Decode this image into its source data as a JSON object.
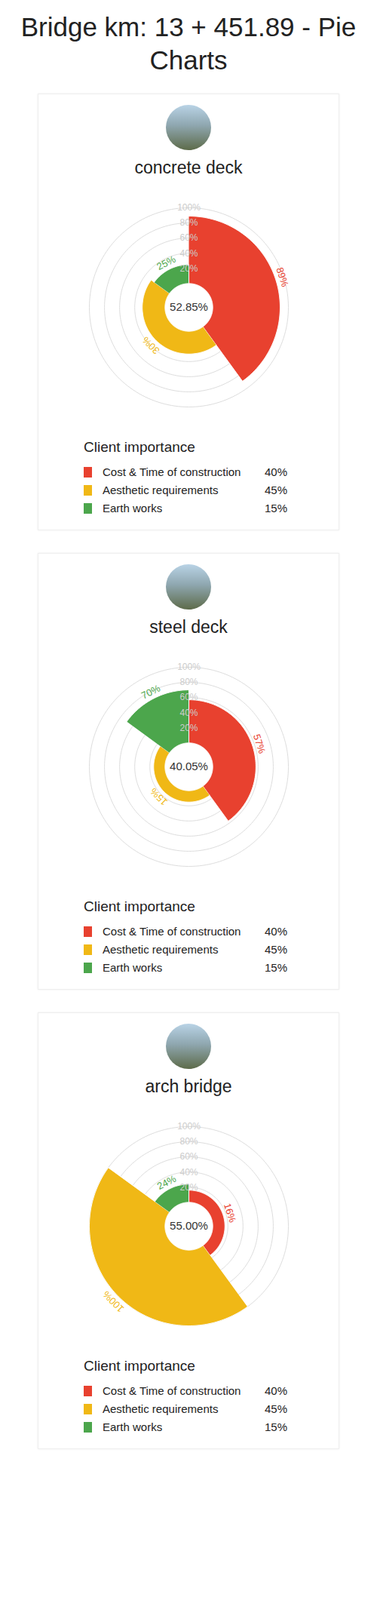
{
  "title": "Bridge km: 13 + 451.89 - Pie Charts",
  "chart_data": [
    {
      "type": "pie",
      "title": "concrete deck",
      "categories": [
        "Cost & Time of construction",
        "Aesthetic requirements",
        "Earth works"
      ],
      "values": [
        89,
        30,
        25
      ],
      "value_labels": [
        "89%",
        "30%",
        "25%"
      ],
      "colors": [
        "#e8412f",
        "#f0b816",
        "#4ca64c"
      ],
      "weights": [
        40,
        45,
        15
      ],
      "weight_labels": [
        "40%",
        "45%",
        "15%"
      ],
      "total": 52.85,
      "total_label": "52.85%",
      "legend_title": "Client importance",
      "ylim": [
        0,
        100
      ],
      "yticks": [
        {
          "value": 20,
          "label": "20%"
        },
        {
          "value": 40,
          "label": "40%"
        },
        {
          "value": 60,
          "label": "60%"
        },
        {
          "value": 80,
          "label": "80%"
        },
        {
          "value": 100,
          "label": "100%"
        }
      ],
      "grid": true,
      "data_labels": true
    },
    {
      "type": "pie",
      "title": "steel deck",
      "categories": [
        "Cost & Time of construction",
        "Aesthetic requirements",
        "Earth works"
      ],
      "values": [
        57,
        15,
        70
      ],
      "value_labels": [
        "57%",
        "15%",
        "70%"
      ],
      "colors": [
        "#e8412f",
        "#f0b816",
        "#4ca64c"
      ],
      "weights": [
        40,
        45,
        15
      ],
      "weight_labels": [
        "40%",
        "45%",
        "15%"
      ],
      "total": 40.05,
      "total_label": "40.05%",
      "legend_title": "Client importance",
      "ylim": [
        0,
        100
      ],
      "yticks": [
        {
          "value": 20,
          "label": "20%"
        },
        {
          "value": 40,
          "label": "40%"
        },
        {
          "value": 60,
          "label": "60%"
        },
        {
          "value": 80,
          "label": "80%"
        },
        {
          "value": 100,
          "label": "100%"
        }
      ],
      "grid": true,
      "data_labels": true
    },
    {
      "type": "pie",
      "title": "arch bridge",
      "categories": [
        "Cost & Time of construction",
        "Aesthetic requirements",
        "Earth works"
      ],
      "values": [
        16,
        100,
        24
      ],
      "value_labels": [
        "16%",
        "100%",
        "24%"
      ],
      "colors": [
        "#e8412f",
        "#f0b816",
        "#4ca64c"
      ],
      "weights": [
        40,
        45,
        15
      ],
      "weight_labels": [
        "40%",
        "45%",
        "15%"
      ],
      "total": 55.0,
      "total_label": "55.00%",
      "legend_title": "Client importance",
      "ylim": [
        0,
        100
      ],
      "yticks": [
        {
          "value": 20,
          "label": "20%"
        },
        {
          "value": 40,
          "label": "40%"
        },
        {
          "value": 60,
          "label": "60%"
        },
        {
          "value": 80,
          "label": "80%"
        },
        {
          "value": 100,
          "label": "100%"
        }
      ],
      "grid": true,
      "data_labels": true
    }
  ]
}
